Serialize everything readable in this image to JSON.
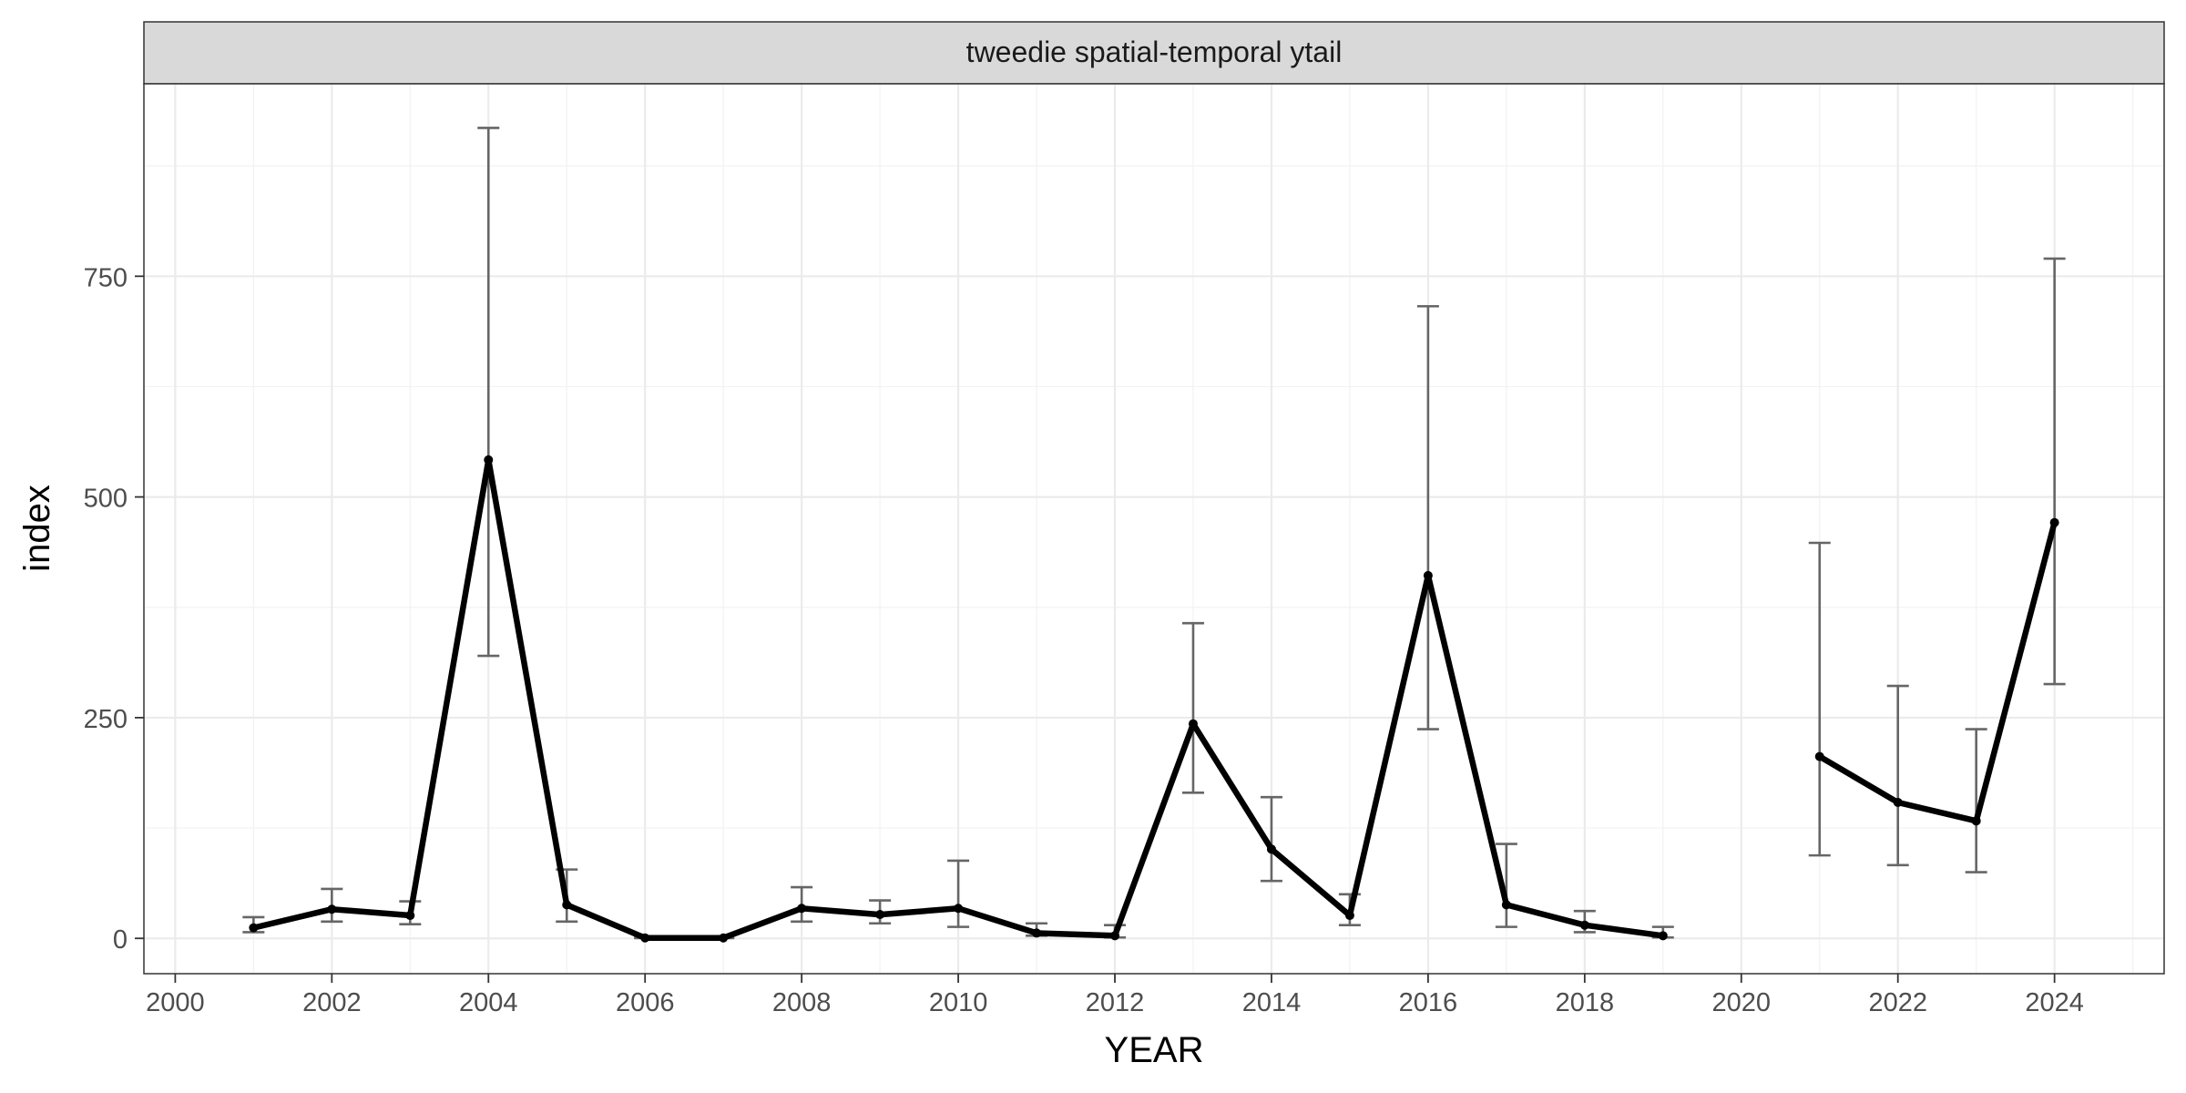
{
  "chart_data": {
    "type": "line",
    "panel_title": "tweedie spatial-temporal ytail",
    "xlabel": "YEAR",
    "ylabel": "index",
    "xlim": [
      1999.6,
      2025.4
    ],
    "ylim": [
      -40,
      968
    ],
    "x_ticks": [
      2000,
      2002,
      2004,
      2006,
      2008,
      2010,
      2012,
      2014,
      2016,
      2018,
      2020,
      2022,
      2024
    ],
    "x_tick_labels": [
      "2000",
      "2002",
      "2004",
      "2006",
      "2008",
      "2010",
      "2012",
      "2014",
      "2016",
      "2018",
      "2020",
      "2022",
      "2024"
    ],
    "y_ticks": [
      0,
      250,
      500,
      750
    ],
    "y_tick_labels": [
      "0",
      "250",
      "500",
      "750"
    ],
    "grid": true,
    "line_color": "#000000",
    "errorbar_color": "#666666",
    "strip_color": "#d9d9d9",
    "series": [
      {
        "points": [
          {
            "x": 2001,
            "y": 12,
            "lower": 7,
            "upper": 24
          },
          {
            "x": 2002,
            "y": 33,
            "lower": 19,
            "upper": 56
          },
          {
            "x": 2003,
            "y": 26,
            "lower": 16,
            "upper": 42
          },
          {
            "x": 2004,
            "y": 542,
            "lower": 320,
            "upper": 918
          },
          {
            "x": 2005,
            "y": 38,
            "lower": 19,
            "upper": 78
          },
          {
            "x": 2006,
            "y": 0.5,
            "lower": 0.3,
            "upper": 1.0
          },
          {
            "x": 2007,
            "y": 0.5,
            "lower": 0.3,
            "upper": 1.0
          },
          {
            "x": 2008,
            "y": 34,
            "lower": 19,
            "upper": 58
          },
          {
            "x": 2009,
            "y": 27,
            "lower": 17,
            "upper": 43
          },
          {
            "x": 2010,
            "y": 34,
            "lower": 13,
            "upper": 88
          },
          {
            "x": 2011,
            "y": 6,
            "lower": 3,
            "upper": 17
          },
          {
            "x": 2012,
            "y": 3,
            "lower": 1,
            "upper": 15
          },
          {
            "x": 2013,
            "y": 243,
            "lower": 165,
            "upper": 357
          },
          {
            "x": 2014,
            "y": 101,
            "lower": 65,
            "upper": 160
          },
          {
            "x": 2015,
            "y": 26,
            "lower": 15,
            "upper": 50
          },
          {
            "x": 2016,
            "y": 411,
            "lower": 237,
            "upper": 716
          },
          {
            "x": 2017,
            "y": 38,
            "lower": 13,
            "upper": 107
          },
          {
            "x": 2018,
            "y": 15,
            "lower": 7,
            "upper": 31
          },
          {
            "x": 2019,
            "y": 3,
            "lower": 1,
            "upper": 13
          },
          {
            "x": 2021,
            "y": 206,
            "lower": 94,
            "upper": 448
          },
          {
            "x": 2022,
            "y": 154,
            "lower": 83,
            "upper": 286
          },
          {
            "x": 2023,
            "y": 133,
            "lower": 75,
            "upper": 237
          },
          {
            "x": 2024,
            "y": 471,
            "lower": 288,
            "upper": 770
          }
        ]
      }
    ]
  }
}
